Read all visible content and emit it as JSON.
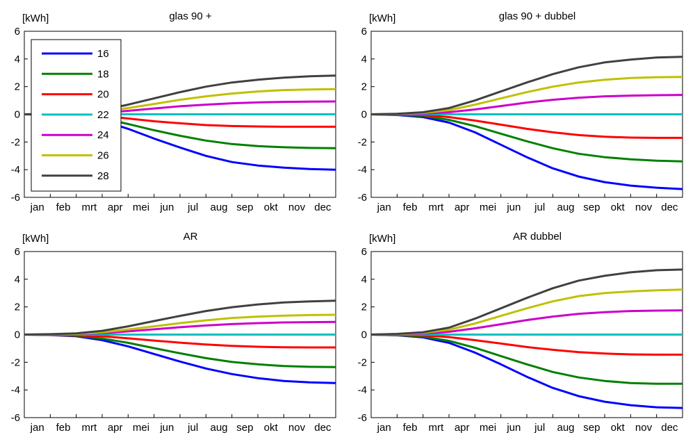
{
  "chart_data": [
    {
      "type": "line",
      "title": "glas 90 +",
      "ylabel": "[kWh]",
      "ylim": [
        -6,
        6
      ],
      "yticks": [
        6,
        4,
        2,
        0,
        -2,
        -4,
        -6
      ],
      "months": [
        "jan",
        "feb",
        "mrt",
        "apr",
        "mei",
        "jun",
        "jul",
        "aug",
        "sep",
        "okt",
        "nov",
        "dec"
      ],
      "x": [
        0,
        1,
        2,
        3,
        4,
        5,
        6,
        7,
        8,
        9,
        10,
        11,
        12
      ],
      "legend": true,
      "series": [
        {
          "name": "16",
          "color": "#0000ff",
          "values": [
            0,
            -0.03,
            -0.12,
            -0.45,
            -1.05,
            -1.75,
            -2.4,
            -3.0,
            -3.45,
            -3.7,
            -3.85,
            -3.95,
            -4.0
          ]
        },
        {
          "name": "18",
          "color": "#008000",
          "values": [
            0,
            -0.02,
            -0.08,
            -0.3,
            -0.7,
            -1.15,
            -1.55,
            -1.9,
            -2.15,
            -2.3,
            -2.38,
            -2.43,
            -2.45
          ]
        },
        {
          "name": "20",
          "color": "#ff0000",
          "values": [
            0,
            -0.01,
            -0.03,
            -0.12,
            -0.3,
            -0.5,
            -0.65,
            -0.78,
            -0.85,
            -0.88,
            -0.9,
            -0.9,
            -0.9
          ]
        },
        {
          "name": "22",
          "color": "#00c0c0",
          "values": [
            0,
            0,
            0,
            0,
            0,
            0,
            0,
            0,
            0,
            0,
            0,
            0,
            0
          ]
        },
        {
          "name": "24",
          "color": "#cc00cc",
          "values": [
            0,
            0.01,
            0.03,
            0.1,
            0.25,
            0.42,
            0.58,
            0.7,
            0.8,
            0.86,
            0.9,
            0.92,
            0.93
          ]
        },
        {
          "name": "26",
          "color": "#c0c000",
          "values": [
            0,
            0.02,
            0.06,
            0.2,
            0.45,
            0.75,
            1.05,
            1.3,
            1.5,
            1.65,
            1.75,
            1.8,
            1.82
          ]
        },
        {
          "name": "28",
          "color": "#404040",
          "values": [
            0,
            0.03,
            0.1,
            0.3,
            0.7,
            1.15,
            1.6,
            2.0,
            2.3,
            2.5,
            2.65,
            2.75,
            2.8
          ]
        }
      ]
    },
    {
      "type": "line",
      "title": "glas 90 + dubbel",
      "ylabel": "[kWh]",
      "ylim": [
        -6,
        6
      ],
      "yticks": [
        6,
        4,
        2,
        0,
        -2,
        -4,
        -6
      ],
      "months": [
        "jan",
        "feb",
        "mrt",
        "apr",
        "mei",
        "jun",
        "jul",
        "aug",
        "sep",
        "okt",
        "nov",
        "dec"
      ],
      "x": [
        0,
        1,
        2,
        3,
        4,
        5,
        6,
        7,
        8,
        9,
        10,
        11,
        12
      ],
      "legend": false,
      "series": [
        {
          "name": "16",
          "color": "#0000ff",
          "values": [
            0,
            -0.05,
            -0.2,
            -0.6,
            -1.3,
            -2.2,
            -3.1,
            -3.9,
            -4.5,
            -4.9,
            -5.15,
            -5.3,
            -5.4
          ]
        },
        {
          "name": "18",
          "color": "#008000",
          "values": [
            0,
            -0.03,
            -0.12,
            -0.4,
            -0.85,
            -1.4,
            -1.95,
            -2.45,
            -2.85,
            -3.1,
            -3.25,
            -3.35,
            -3.4
          ]
        },
        {
          "name": "20",
          "color": "#ff0000",
          "values": [
            0,
            -0.01,
            -0.05,
            -0.2,
            -0.45,
            -0.75,
            -1.05,
            -1.3,
            -1.5,
            -1.62,
            -1.68,
            -1.7,
            -1.7
          ]
        },
        {
          "name": "22",
          "color": "#00c0c0",
          "values": [
            0,
            0,
            0,
            0,
            0,
            0,
            0,
            0,
            0,
            0,
            0,
            0,
            0
          ]
        },
        {
          "name": "24",
          "color": "#cc00cc",
          "values": [
            0,
            0.01,
            0.04,
            0.15,
            0.35,
            0.6,
            0.85,
            1.05,
            1.2,
            1.3,
            1.35,
            1.38,
            1.4
          ]
        },
        {
          "name": "26",
          "color": "#c0c000",
          "values": [
            0,
            0.03,
            0.1,
            0.3,
            0.7,
            1.15,
            1.6,
            2.0,
            2.3,
            2.5,
            2.62,
            2.68,
            2.7
          ]
        },
        {
          "name": "28",
          "color": "#404040",
          "values": [
            0,
            0.04,
            0.15,
            0.45,
            1.0,
            1.65,
            2.3,
            2.9,
            3.4,
            3.75,
            3.95,
            4.1,
            4.15
          ]
        }
      ]
    },
    {
      "type": "line",
      "title": "AR",
      "ylabel": "[kWh]",
      "ylim": [
        -6,
        6
      ],
      "yticks": [
        6,
        4,
        2,
        0,
        -2,
        -4,
        -6
      ],
      "months": [
        "jan",
        "feb",
        "mrt",
        "apr",
        "mei",
        "jun",
        "jul",
        "aug",
        "sep",
        "okt",
        "nov",
        "dec"
      ],
      "x": [
        0,
        1,
        2,
        3,
        4,
        5,
        6,
        7,
        8,
        9,
        10,
        11,
        12
      ],
      "legend": false,
      "series": [
        {
          "name": "16",
          "color": "#0000ff",
          "values": [
            0,
            -0.03,
            -0.12,
            -0.4,
            -0.85,
            -1.4,
            -1.95,
            -2.45,
            -2.85,
            -3.15,
            -3.35,
            -3.45,
            -3.5
          ]
        },
        {
          "name": "18",
          "color": "#008000",
          "values": [
            0,
            -0.02,
            -0.08,
            -0.28,
            -0.6,
            -0.98,
            -1.35,
            -1.7,
            -1.98,
            -2.15,
            -2.27,
            -2.33,
            -2.35
          ]
        },
        {
          "name": "20",
          "color": "#ff0000",
          "values": [
            0,
            -0.01,
            -0.04,
            -0.12,
            -0.27,
            -0.43,
            -0.58,
            -0.72,
            -0.82,
            -0.88,
            -0.92,
            -0.93,
            -0.93
          ]
        },
        {
          "name": "22",
          "color": "#00c0c0",
          "values": [
            0,
            0,
            0,
            0,
            0,
            0,
            0,
            0,
            0,
            0,
            0,
            0,
            0
          ]
        },
        {
          "name": "24",
          "color": "#cc00cc",
          "values": [
            0,
            0.01,
            0.03,
            0.1,
            0.23,
            0.38,
            0.53,
            0.66,
            0.76,
            0.83,
            0.88,
            0.9,
            0.92
          ]
        },
        {
          "name": "26",
          "color": "#c0c000",
          "values": [
            0,
            0.02,
            0.05,
            0.16,
            0.37,
            0.6,
            0.83,
            1.03,
            1.2,
            1.3,
            1.37,
            1.41,
            1.43
          ]
        },
        {
          "name": "28",
          "color": "#404040",
          "values": [
            0,
            0.03,
            0.09,
            0.27,
            0.6,
            0.98,
            1.35,
            1.7,
            1.98,
            2.18,
            2.32,
            2.4,
            2.45
          ]
        }
      ]
    },
    {
      "type": "line",
      "title": "AR dubbel",
      "ylabel": "[kWh]",
      "ylim": [
        -6,
        6
      ],
      "yticks": [
        6,
        4,
        2,
        0,
        -2,
        -4,
        -6
      ],
      "months": [
        "jan",
        "feb",
        "mrt",
        "apr",
        "mei",
        "jun",
        "jul",
        "aug",
        "sep",
        "okt",
        "nov",
        "dec"
      ],
      "x": [
        0,
        1,
        2,
        3,
        4,
        5,
        6,
        7,
        8,
        9,
        10,
        11,
        12
      ],
      "legend": false,
      "series": [
        {
          "name": "16",
          "color": "#0000ff",
          "values": [
            0,
            -0.05,
            -0.2,
            -0.6,
            -1.3,
            -2.15,
            -3.05,
            -3.85,
            -4.45,
            -4.85,
            -5.1,
            -5.25,
            -5.3
          ]
        },
        {
          "name": "18",
          "color": "#008000",
          "values": [
            0,
            -0.04,
            -0.14,
            -0.45,
            -0.95,
            -1.55,
            -2.15,
            -2.7,
            -3.1,
            -3.35,
            -3.5,
            -3.55,
            -3.55
          ]
        },
        {
          "name": "20",
          "color": "#ff0000",
          "values": [
            0,
            -0.01,
            -0.05,
            -0.18,
            -0.4,
            -0.65,
            -0.9,
            -1.1,
            -1.27,
            -1.37,
            -1.43,
            -1.45,
            -1.45
          ]
        },
        {
          "name": "22",
          "color": "#00c0c0",
          "values": [
            0,
            0,
            0,
            0,
            0,
            0,
            0,
            0,
            0,
            0,
            0,
            0,
            0
          ]
        },
        {
          "name": "24",
          "color": "#cc00cc",
          "values": [
            0,
            0.02,
            0.06,
            0.2,
            0.45,
            0.75,
            1.05,
            1.3,
            1.5,
            1.62,
            1.7,
            1.73,
            1.75
          ]
        },
        {
          "name": "26",
          "color": "#c0c000",
          "values": [
            0,
            0.03,
            0.12,
            0.35,
            0.8,
            1.35,
            1.9,
            2.4,
            2.78,
            3.0,
            3.12,
            3.2,
            3.25
          ]
        },
        {
          "name": "28",
          "color": "#404040",
          "values": [
            0,
            0.05,
            0.17,
            0.5,
            1.15,
            1.9,
            2.65,
            3.35,
            3.9,
            4.25,
            4.5,
            4.65,
            4.7
          ]
        }
      ]
    }
  ]
}
